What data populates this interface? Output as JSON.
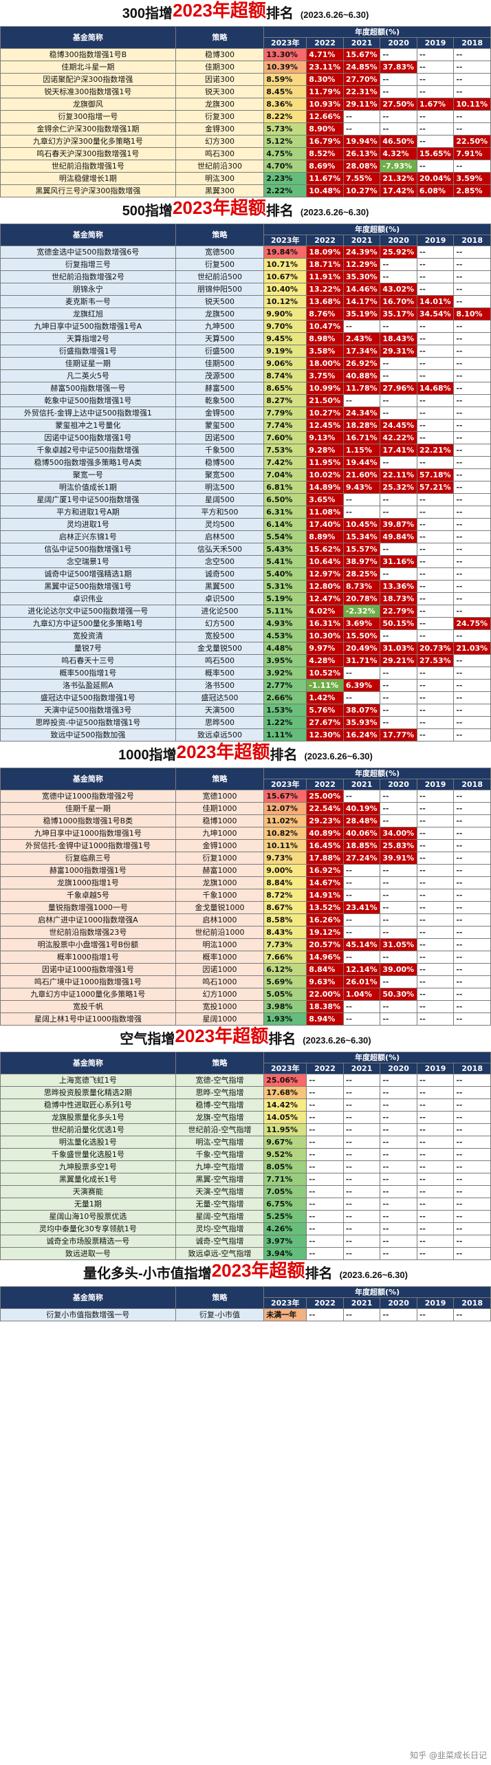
{
  "headers": {
    "name": "基金简称",
    "strategy": "策略",
    "annual_label": "年度超额(%)",
    "years": [
      "2023年",
      "2022",
      "2021",
      "2020",
      "2019",
      "2018"
    ]
  },
  "watermark": "知乎 @韭菜成长日记",
  "sections": [
    {
      "id": "s300",
      "theme": "yellow",
      "title1": "300指增",
      "title2": "2023年超额",
      "title3": "排名",
      "dates": "(2023.6.26~6.30)",
      "rows": [
        [
          "稳博300指数增强1号B",
          "稳博300",
          "13.30%",
          "4.71%",
          "15.67%",
          "--",
          "--",
          "--"
        ],
        [
          "佳期北斗星一期",
          "佳期300",
          "10.39%",
          "23.11%",
          "24.85%",
          "37.83%",
          "--",
          "--"
        ],
        [
          "因诺聚配沪深300指数增强",
          "因诺300",
          "8.59%",
          "8.30%",
          "27.70%",
          "--",
          "--",
          "--"
        ],
        [
          "锐天标准300指数增强1号",
          "锐天300",
          "8.45%",
          "11.79%",
          "22.31%",
          "--",
          "--",
          "--"
        ],
        [
          "龙旗御风",
          "龙旗300",
          "8.36%",
          "10.93%",
          "29.11%",
          "27.50%",
          "1.67%",
          "10.11%"
        ],
        [
          "衍复300指增一号",
          "衍复300",
          "8.22%",
          "12.66%",
          "--",
          "--",
          "--",
          "--"
        ],
        [
          "金锝余仁沪深300指数增强1期",
          "金锝300",
          "5.73%",
          "8.90%",
          "--",
          "--",
          "--",
          "--"
        ],
        [
          "九章幻方沪深300量化多策略1号",
          "幻方300",
          "5.12%",
          "16.79%",
          "19.94%",
          "46.50%",
          "--",
          "22.50%"
        ],
        [
          "鸣石春天沪深300指数增强1号",
          "鸣石300",
          "4.75%",
          "8.52%",
          "26.13%",
          "4.32%",
          "15.65%",
          "7.91%"
        ],
        [
          "世纪前沿指数增强1号",
          "世纪前沿300",
          "4.70%",
          "8.69%",
          "28.08%",
          "-7.93%",
          "--",
          "--"
        ],
        [
          "明汯稳健增长1期",
          "明汯300",
          "2.23%",
          "11.67%",
          "7.55%",
          "21.32%",
          "20.04%",
          "3.59%"
        ],
        [
          "黑翼风行三号沪深300指数增强",
          "黑翼300",
          "2.22%",
          "10.48%",
          "10.27%",
          "17.42%",
          "6.08%",
          "2.85%"
        ]
      ]
    },
    {
      "id": "s500",
      "theme": "blue",
      "title1": "500指增",
      "title2": "2023年超额",
      "title3": "排名",
      "dates": "(2023.6.26~6.30)",
      "rows": [
        [
          "宽德金选中证500指数增强6号",
          "宽德500",
          "19.84%",
          "18.09%",
          "24.39%",
          "25.92%",
          "--",
          "--"
        ],
        [
          "衍复指增三号",
          "衍复500",
          "10.71%",
          "18.71%",
          "12.29%",
          "--",
          "--",
          "--"
        ],
        [
          "世纪前沿指数增强2号",
          "世纪前沿500",
          "10.67%",
          "11.91%",
          "35.30%",
          "--",
          "--",
          "--"
        ],
        [
          "朋锦永宁",
          "朋锦仲阳500",
          "10.40%",
          "13.22%",
          "14.46%",
          "43.02%",
          "--",
          "--"
        ],
        [
          "麦克斯韦一号",
          "锐天500",
          "10.12%",
          "13.68%",
          "14.17%",
          "16.70%",
          "14.01%",
          "--"
        ],
        [
          "龙旗红旭",
          "龙旗500",
          "9.90%",
          "8.76%",
          "35.19%",
          "35.17%",
          "34.54%",
          "8.10%"
        ],
        [
          "九坤日享中证500指数增强1号A",
          "九坤500",
          "9.70%",
          "10.47%",
          "--",
          "--",
          "--",
          "--"
        ],
        [
          "天算指增2号",
          "天算500",
          "9.45%",
          "8.98%",
          "2.43%",
          "18.43%",
          "--",
          "--"
        ],
        [
          "衍盛指数增强1号",
          "衍盛500",
          "9.19%",
          "3.58%",
          "17.34%",
          "29.31%",
          "--",
          "--"
        ],
        [
          "佳期证星一期",
          "佳期500",
          "9.06%",
          "18.00%",
          "26.92%",
          "--",
          "--",
          "--"
        ],
        [
          "凡二英火5号",
          "茂源500",
          "8.74%",
          "3.75%",
          "40.88%",
          "--",
          "--",
          "--"
        ],
        [
          "赫富500指数增强一号",
          "赫富500",
          "8.65%",
          "10.99%",
          "11.78%",
          "27.96%",
          "14.68%",
          "--"
        ],
        [
          "乾象中证500指数增强1号",
          "乾象500",
          "8.27%",
          "21.50%",
          "--",
          "--",
          "--",
          "--"
        ],
        [
          "外贸信托-金锝上达中证500指数增强1",
          "金锝500",
          "7.79%",
          "10.27%",
          "24.34%",
          "--",
          "--",
          "--"
        ],
        [
          "蒙玺祖冲之1号量化",
          "蒙玺500",
          "7.74%",
          "12.45%",
          "18.28%",
          "24.45%",
          "--",
          "--"
        ],
        [
          "因诺中证500指数增强1号",
          "因诺500",
          "7.60%",
          "9.13%",
          "16.71%",
          "42.22%",
          "--",
          "--"
        ],
        [
          "千象卓越2号中证500指数增强",
          "千象500",
          "7.53%",
          "9.28%",
          "1.15%",
          "17.41%",
          "22.21%",
          "--"
        ],
        [
          "稳博500指数增强多策略1号A类",
          "稳博500",
          "7.42%",
          "11.95%",
          "19.44%",
          "--",
          "--",
          "--"
        ],
        [
          "聚宽一号",
          "聚宽500",
          "7.04%",
          "10.02%",
          "21.60%",
          "22.11%",
          "57.18%",
          "--"
        ],
        [
          "明汯价值成长1期",
          "明汯500",
          "6.81%",
          "14.89%",
          "9.43%",
          "25.32%",
          "57.21%",
          "--"
        ],
        [
          "星阔广厦1号中证500指数增强",
          "星阔500",
          "6.50%",
          "3.65%",
          "--",
          "--",
          "--",
          "--"
        ],
        [
          "平方和进取1号A期",
          "平方和500",
          "6.31%",
          "11.08%",
          "--",
          "--",
          "--",
          "--"
        ],
        [
          "灵均进取1号",
          "灵均500",
          "6.14%",
          "17.40%",
          "10.45%",
          "39.87%",
          "--",
          "--"
        ],
        [
          "启林正兴东锦1号",
          "启林500",
          "5.54%",
          "8.89%",
          "15.34%",
          "49.84%",
          "--",
          "--"
        ],
        [
          "信弘中证500指数增强1号",
          "信弘天禾500",
          "5.43%",
          "15.62%",
          "15.57%",
          "--",
          "--",
          "--"
        ],
        [
          "念空瑞景1号",
          "念空500",
          "5.41%",
          "10.64%",
          "38.97%",
          "31.16%",
          "--",
          "--"
        ],
        [
          "诚奇中证500增强精选1期",
          "诚奇500",
          "5.40%",
          "12.97%",
          "28.25%",
          "--",
          "--",
          "--"
        ],
        [
          "黑翼中证500指数增强1号",
          "黑翼500",
          "5.31%",
          "12.80%",
          "8.73%",
          "13.36%",
          "--",
          "--"
        ],
        [
          "卓识伟业",
          "卓识500",
          "5.19%",
          "12.47%",
          "20.78%",
          "18.73%",
          "--",
          "--"
        ],
        [
          "进化论达尔文中证500指数增强一号",
          "进化论500",
          "5.11%",
          "4.02%",
          "-2.32%",
          "22.79%",
          "--",
          "--"
        ],
        [
          "九章幻方中证500量化多策略1号",
          "幻方500",
          "4.93%",
          "16.31%",
          "3.69%",
          "50.15%",
          "--",
          "24.75%"
        ],
        [
          "宽投资清",
          "宽投500",
          "4.53%",
          "10.30%",
          "15.50%",
          "--",
          "--",
          "--"
        ],
        [
          "量锐7号",
          "金戈量锐500",
          "4.48%",
          "9.97%",
          "20.49%",
          "31.03%",
          "20.73%",
          "21.03%"
        ],
        [
          "鸣石春天十三号",
          "鸣石500",
          "3.95%",
          "4.28%",
          "31.71%",
          "29.21%",
          "27.53%",
          "--"
        ],
        [
          "概率500指增1号",
          "概率500",
          "3.92%",
          "10.52%",
          "--",
          "--",
          "--",
          "--"
        ],
        [
          "洛书弘盈延熙A",
          "洛书500",
          "2.77%",
          "-1.11%",
          "6.39%",
          "--",
          "--",
          "--"
        ],
        [
          "盛冠达中证500指数增强1号",
          "盛冠达500",
          "2.66%",
          "1.42%",
          "--",
          "--",
          "--",
          "--"
        ],
        [
          "天演中证500指数增强3号",
          "天演500",
          "1.53%",
          "5.76%",
          "38.07%",
          "--",
          "--",
          "--"
        ],
        [
          "思晔投资-中证500指数增强1号",
          "思晔500",
          "1.22%",
          "27.67%",
          "35.93%",
          "--",
          "--",
          "--"
        ],
        [
          "致远中证500指数加强",
          "致远卓远500",
          "1.11%",
          "12.30%",
          "16.24%",
          "17.77%",
          "--",
          "--"
        ]
      ]
    },
    {
      "id": "s1000",
      "theme": "peach",
      "title1": "1000指增",
      "title2": "2023年超额",
      "title3": "排名",
      "dates": "(2023.6.26~6.30)",
      "rows": [
        [
          "宽德中证1000指数增强2号",
          "宽德1000",
          "15.67%",
          "25.00%",
          "--",
          "--",
          "--",
          "--"
        ],
        [
          "佳期千星一期",
          "佳期1000",
          "12.07%",
          "22.54%",
          "40.19%",
          "--",
          "--",
          "--"
        ],
        [
          "稳博1000指数增强1号B类",
          "稳博1000",
          "11.02%",
          "29.23%",
          "28.48%",
          "--",
          "--",
          "--"
        ],
        [
          "九坤日享中证1000指数增强1号",
          "九坤1000",
          "10.82%",
          "40.89%",
          "40.06%",
          "34.00%",
          "--",
          "--"
        ],
        [
          "外贸信托-金锝中证1000指数增强1号",
          "金锝1000",
          "10.11%",
          "16.45%",
          "18.85%",
          "25.83%",
          "--",
          "--"
        ],
        [
          "衍复临鼎三号",
          "衍复1000",
          "9.73%",
          "17.88%",
          "27.24%",
          "39.91%",
          "--",
          "--"
        ],
        [
          "赫富1000指数增强1号",
          "赫富1000",
          "9.00%",
          "16.92%",
          "--",
          "--",
          "--",
          "--"
        ],
        [
          "龙旗1000指增1号",
          "龙旗1000",
          "8.84%",
          "14.67%",
          "--",
          "--",
          "--",
          "--"
        ],
        [
          "千象卓越5号",
          "千象1000",
          "8.72%",
          "14.91%",
          "--",
          "--",
          "--",
          "--"
        ],
        [
          "量锐指数增强1000一号",
          "金戈量锐1000",
          "8.67%",
          "13.52%",
          "23.41%",
          "--",
          "--",
          "--"
        ],
        [
          "启林广进中证1000指数增强A",
          "启林1000",
          "8.58%",
          "16.26%",
          "--",
          "--",
          "--",
          "--"
        ],
        [
          "世纪前沿指数增强23号",
          "世纪前沿1000",
          "8.43%",
          "19.12%",
          "--",
          "--",
          "--",
          "--"
        ],
        [
          "明汯股票中小盘增强1号B份额",
          "明汯1000",
          "7.73%",
          "20.57%",
          "45.14%",
          "31.05%",
          "--",
          "--"
        ],
        [
          "概率1000指增1号",
          "概率1000",
          "7.66%",
          "14.96%",
          "--",
          "--",
          "--",
          "--"
        ],
        [
          "因诺中证1000指数增强1号",
          "因诺1000",
          "6.12%",
          "8.84%",
          "12.14%",
          "39.00%",
          "--",
          "--"
        ],
        [
          "鸣石广境中证1000指数增强1号",
          "鸣石1000",
          "5.69%",
          "9.63%",
          "26.01%",
          "--",
          "--",
          "--"
        ],
        [
          "九章幻方中证1000量化多策略1号",
          "幻方1000",
          "5.05%",
          "22.00%",
          "1.04%",
          "50.30%",
          "--",
          "--"
        ],
        [
          "宽投千帆",
          "宽投1000",
          "3.98%",
          "18.38%",
          "--",
          "--",
          "--",
          "--"
        ],
        [
          "星阔上林1号中证1000指数增强",
          "星阔1000",
          "1.93%",
          "8.94%",
          "--",
          "--",
          "--",
          "--"
        ]
      ]
    },
    {
      "id": "sair",
      "theme": "green",
      "title1": "空气指增",
      "title2": "2023年超额",
      "title3": "排名",
      "dates": "(2023.6.26~6.30)",
      "rows": [
        [
          "上海宽德飞虹1号",
          "宽德-空气指增",
          "25.06%",
          "--",
          "--",
          "--",
          "--",
          "--"
        ],
        [
          "思晔投资股票量化精选2期",
          "思晔-空气指增",
          "17.68%",
          "--",
          "--",
          "--",
          "--",
          "--"
        ],
        [
          "稳博中性进取匠心系列1号",
          "稳博-空气指增",
          "14.42%",
          "--",
          "--",
          "--",
          "--",
          "--"
        ],
        [
          "龙旗股票量化多头1号",
          "龙旗-空气指增",
          "14.05%",
          "--",
          "--",
          "--",
          "--",
          "--"
        ],
        [
          "世纪前沿量化优选1号",
          "世纪前沿-空气指增",
          "11.95%",
          "--",
          "--",
          "--",
          "--",
          "--"
        ],
        [
          "明汯量化选股1号",
          "明汯-空气指增",
          "9.67%",
          "--",
          "--",
          "--",
          "--",
          "--"
        ],
        [
          "千象盛世量化选股1号",
          "千象-空气指增",
          "9.52%",
          "--",
          "--",
          "--",
          "--",
          "--"
        ],
        [
          "九坤股票多空1号",
          "九坤-空气指增",
          "8.05%",
          "--",
          "--",
          "--",
          "--",
          "--"
        ],
        [
          "黑翼量化成长1号",
          "黑翼-空气指增",
          "7.71%",
          "--",
          "--",
          "--",
          "--",
          "--"
        ],
        [
          "天演赛能",
          "天演-空气指增",
          "7.05%",
          "--",
          "--",
          "--",
          "--",
          "--"
        ],
        [
          "无量1期",
          "无量-空气指增",
          "6.75%",
          "--",
          "--",
          "--",
          "--",
          "--"
        ],
        [
          "星阔山海10号股票优选",
          "星阔-空气指增",
          "5.25%",
          "--",
          "--",
          "--",
          "--",
          "--"
        ],
        [
          "灵均中泰量化30专享领航1号",
          "灵均-空气指增",
          "4.26%",
          "--",
          "--",
          "--",
          "--",
          "--"
        ],
        [
          "诚奇全市场股票精选一号",
          "诚奇-空气指增",
          "3.97%",
          "--",
          "--",
          "--",
          "--",
          "--"
        ],
        [
          "致远进取一号",
          "致远卓远-空气指增",
          "3.94%",
          "--",
          "--",
          "--",
          "--",
          "--"
        ]
      ]
    },
    {
      "id": "squant",
      "theme": "blue",
      "title1": "量化多头-小市值指增",
      "title2": "2023年超额",
      "title3": "排名",
      "dates": "(2023.6.26~6.30)",
      "rows": [
        [
          "衍复小市值指数增强一号",
          "衍复-小市值",
          "未满一年",
          "--",
          "--",
          "--",
          "--",
          "--"
        ]
      ]
    }
  ]
}
